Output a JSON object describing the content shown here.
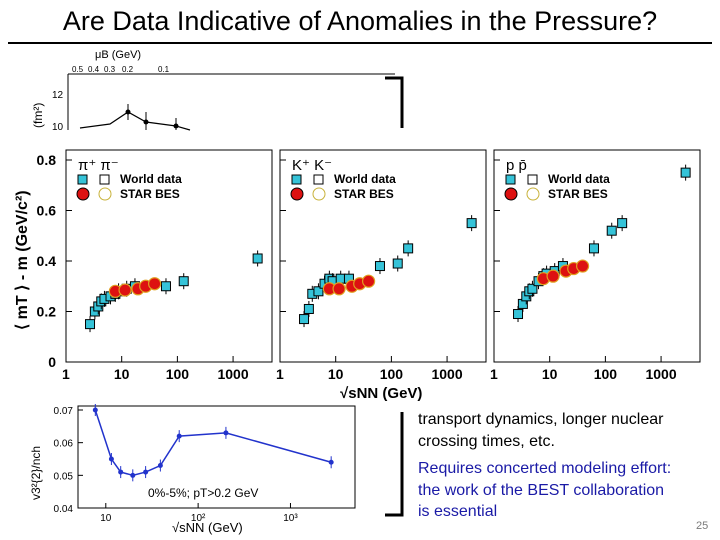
{
  "title": "Are Data Indicative of Anomalies in the Pressure?",
  "page_number": "25",
  "body_text": {
    "line1": "transport dynamics, longer nuclear",
    "line2": "crossing times, etc.",
    "blue1": "Requires concerted modeling effort:",
    "blue2": "the work of the BEST collaboration",
    "blue3": "is essential",
    "blue_color": "#1a1aa6"
  },
  "top_figure": {
    "axis_label": "μB (GeV)",
    "ticks": [
      "0.5",
      "0.4",
      "0.3",
      "0.2",
      "0.1"
    ],
    "y_unit": "(fm²)",
    "y_ticks": [
      "12",
      "10"
    ]
  },
  "chart_data": [
    {
      "type": "scatter",
      "ylabel": "⟨ mT ⟩ - m (GeV/c²)",
      "xlabel": "√sNN (GeV)",
      "x_scale": "log",
      "xlim": [
        1,
        5000
      ],
      "ylim": [
        0,
        0.8
      ],
      "y_ticks": [
        "0",
        "0.2",
        "0.4",
        "0.6",
        "0.8"
      ],
      "x_ticks": [
        "1",
        "10",
        "100",
        "1000"
      ],
      "legend_world": "World data",
      "legend_star": "STAR BES",
      "world_color": "#35c3d8",
      "star_color": "#dd1111",
      "panels": [
        {
          "particles": "π⁺  π⁻",
          "world": [
            [
              2.7,
              0.15
            ],
            [
              3.3,
              0.2
            ],
            [
              3.8,
              0.22
            ],
            [
              4.3,
              0.24
            ],
            [
              4.9,
              0.25
            ],
            [
              6.3,
              0.26
            ],
            [
              7.7,
              0.27
            ],
            [
              8.8,
              0.28
            ],
            [
              12.3,
              0.29
            ],
            [
              17.3,
              0.3
            ],
            [
              62.4,
              0.3
            ],
            [
              130,
              0.32
            ],
            [
              2760,
              0.41
            ]
          ],
          "star": [
            [
              7.7,
              0.28
            ],
            [
              11.5,
              0.285
            ],
            [
              19.6,
              0.29
            ],
            [
              27,
              0.3
            ],
            [
              39,
              0.31
            ]
          ]
        },
        {
          "particles": "K⁺  K⁻",
          "world": [
            [
              2.7,
              0.17
            ],
            [
              3.3,
              0.21
            ],
            [
              3.8,
              0.27
            ],
            [
              4.9,
              0.28
            ],
            [
              6.3,
              0.31
            ],
            [
              7.7,
              0.33
            ],
            [
              8.8,
              0.32
            ],
            [
              12.3,
              0.33
            ],
            [
              17.3,
              0.33
            ],
            [
              62.4,
              0.38
            ],
            [
              130,
              0.39
            ],
            [
              200,
              0.45
            ],
            [
              2760,
              0.55
            ]
          ],
          "star": [
            [
              7.7,
              0.29
            ],
            [
              11.5,
              0.29
            ],
            [
              19.6,
              0.3
            ],
            [
              27,
              0.31
            ],
            [
              39,
              0.32
            ]
          ]
        },
        {
          "particles": "p  p̄",
          "world": [
            [
              2.7,
              0.19
            ],
            [
              3.3,
              0.23
            ],
            [
              3.8,
              0.26
            ],
            [
              4.3,
              0.28
            ],
            [
              4.9,
              0.29
            ],
            [
              6.3,
              0.32
            ],
            [
              7.7,
              0.34
            ],
            [
              8.8,
              0.35
            ],
            [
              12.3,
              0.36
            ],
            [
              17.3,
              0.38
            ],
            [
              62.4,
              0.45
            ],
            [
              130,
              0.52
            ],
            [
              200,
              0.55
            ],
            [
              2760,
              0.75
            ]
          ],
          "star": [
            [
              7.7,
              0.33
            ],
            [
              11.5,
              0.34
            ],
            [
              19.6,
              0.36
            ],
            [
              27,
              0.37
            ],
            [
              39,
              0.38
            ]
          ]
        }
      ]
    },
    {
      "type": "line",
      "ylabel": "v3²{2}/nch",
      "xlabel": "√sNN (GeV)",
      "x_scale": "log",
      "xlim": [
        5,
        5000
      ],
      "ylim": [
        0.04,
        0.07
      ],
      "y_ticks": [
        "0.07",
        "0.06",
        "0.05",
        "0.04"
      ],
      "x_ticks": [
        "10",
        "10²",
        "10³"
      ],
      "annotation": "0%-5%; pT>0.2 GeV",
      "line_color": "#2233cc",
      "points": [
        [
          7.7,
          0.07
        ],
        [
          11.5,
          0.055
        ],
        [
          14.5,
          0.051
        ],
        [
          19.6,
          0.05
        ],
        [
          27,
          0.051
        ],
        [
          39,
          0.053
        ],
        [
          62.4,
          0.062
        ],
        [
          200,
          0.063
        ],
        [
          2760,
          0.054
        ]
      ]
    }
  ]
}
